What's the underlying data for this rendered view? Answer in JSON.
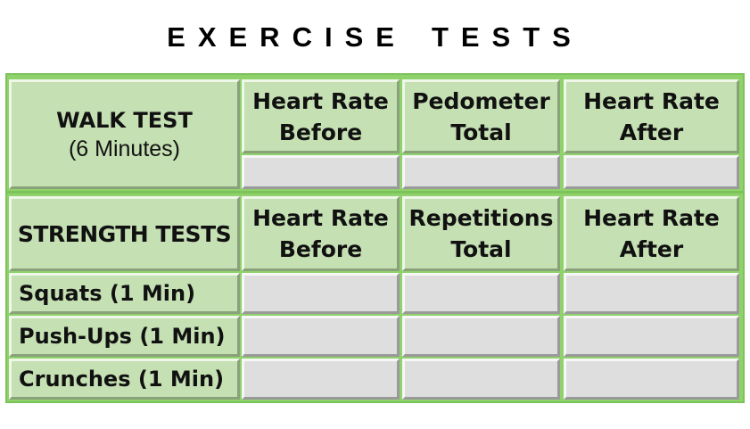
{
  "title_words": [
    "EXERCISE",
    "TESTS"
  ],
  "walk": {
    "title": "WALK TEST",
    "subtitle": "(6 Minutes)",
    "headers": [
      {
        "line1": "Heart Rate",
        "line2": "Before"
      },
      {
        "line1": "Pedometer",
        "line2": "Total"
      },
      {
        "line1": "Heart Rate",
        "line2": "After"
      }
    ]
  },
  "strength": {
    "title": "STRENGTH TESTS",
    "headers": [
      {
        "line1": "Heart Rate",
        "line2": "Before"
      },
      {
        "line1": "Repetitions",
        "line2": "Total"
      },
      {
        "line1": "Heart Rate",
        "line2": "After"
      }
    ],
    "rows": [
      {
        "label": "Squats (1 Min)"
      },
      {
        "label": "Push-Ups (1 Min)"
      },
      {
        "label": "Crunches (1 Min)"
      }
    ]
  }
}
